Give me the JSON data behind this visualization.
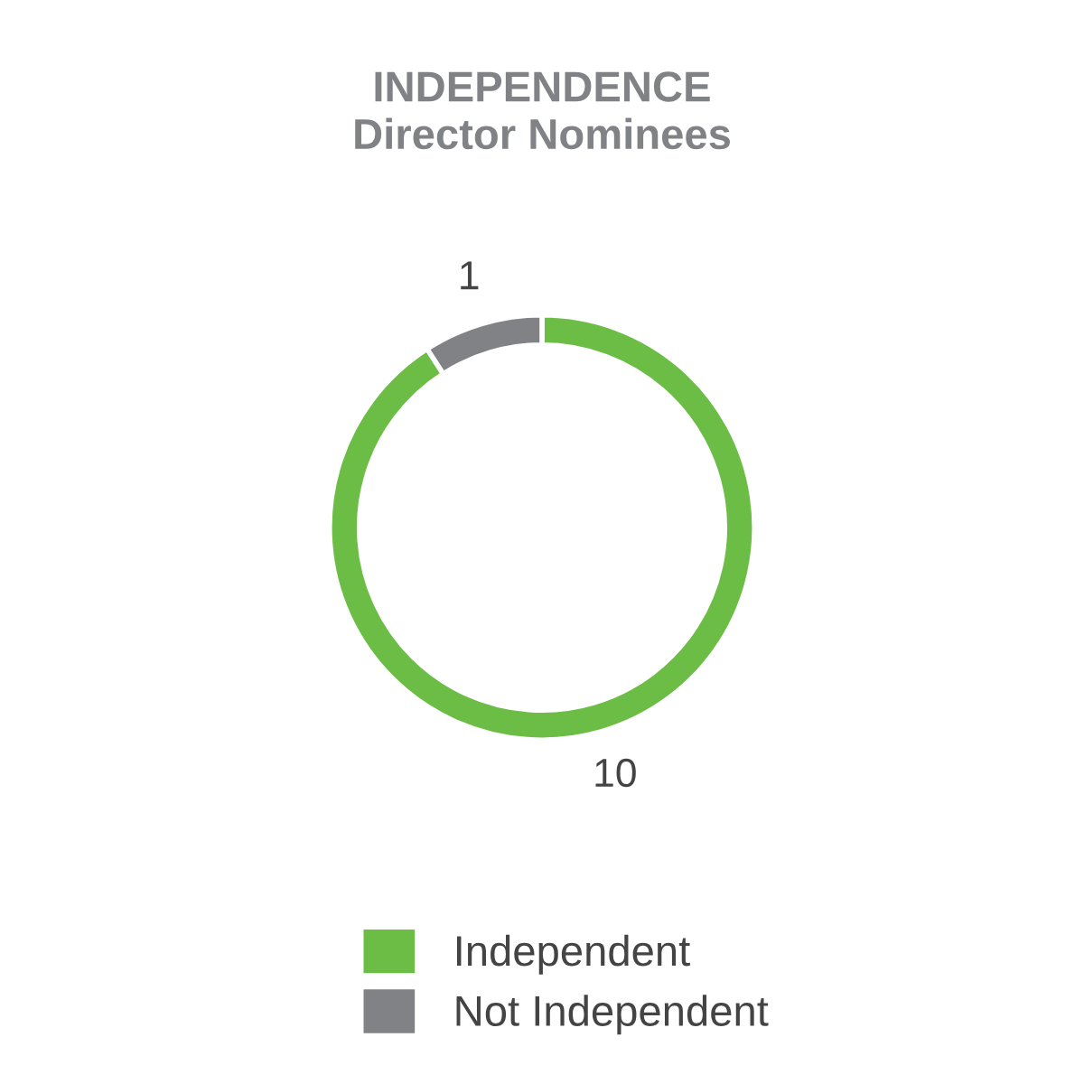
{
  "chart_data": {
    "type": "donut",
    "title": "INDEPENDENCE\nDirector Nominees",
    "categories": [
      "Independent",
      "Not Independent"
    ],
    "values": [
      10,
      1
    ],
    "colors": [
      "#6cbd45",
      "#808285"
    ],
    "data_labels": true,
    "legend": "bottom"
  }
}
